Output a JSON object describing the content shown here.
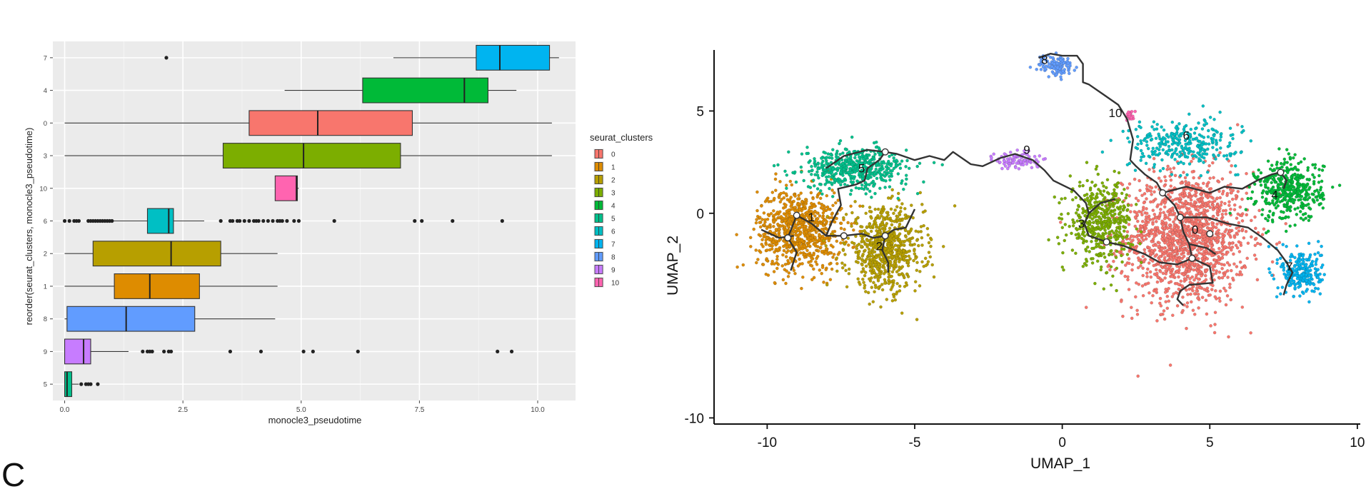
{
  "panel_letter": "C",
  "chart_data": [
    {
      "type": "boxplot",
      "xlabel": "monocle3_pseudotime",
      "ylabel": "reorder(seurat_clusters, monocle3_pseudotime)",
      "xlim": [
        -0.25,
        10.8
      ],
      "x_ticks": [
        "0.0",
        "2.5",
        "5.0",
        "7.5",
        "10.0"
      ],
      "x_tick_values": [
        0,
        2.5,
        5,
        7.5,
        10
      ],
      "grid": true,
      "legend": {
        "title": "seurat_clusters",
        "placement": "right",
        "entries": [
          "0",
          "1",
          "2",
          "3",
          "4",
          "5",
          "6",
          "7",
          "8",
          "9",
          "10"
        ]
      },
      "colors": {
        "0": "#F8766D",
        "1": "#DE8C00",
        "2": "#B79F00",
        "3": "#7CAE00",
        "4": "#00BA38",
        "5": "#00C08B",
        "6": "#00BFC4",
        "7": "#00B4F0",
        "8": "#619CFF",
        "9": "#C77CFF",
        "10": "#FF64B0"
      },
      "categories_top_to_bottom": [
        "7",
        "4",
        "0",
        "3",
        "10",
        "6",
        "2",
        "1",
        "8",
        "9",
        "5"
      ],
      "boxes": [
        {
          "cluster": "7",
          "whisker_low": 6.95,
          "q1": 8.7,
          "median": 9.2,
          "q3": 10.25,
          "whisker_high": 10.45,
          "outliers": [
            2.15
          ]
        },
        {
          "cluster": "4",
          "whisker_low": 4.65,
          "q1": 6.3,
          "median": 8.45,
          "q3": 8.95,
          "whisker_high": 9.55,
          "outliers": []
        },
        {
          "cluster": "0",
          "whisker_low": 0.0,
          "q1": 3.9,
          "median": 5.35,
          "q3": 7.35,
          "whisker_high": 10.3,
          "outliers": []
        },
        {
          "cluster": "3",
          "whisker_low": 0.0,
          "q1": 3.35,
          "median": 5.05,
          "q3": 7.1,
          "whisker_high": 10.3,
          "outliers": []
        },
        {
          "cluster": "10",
          "whisker_low": 4.45,
          "q1": 4.45,
          "median": 4.9,
          "q3": 4.92,
          "whisker_high": 4.95,
          "outliers": []
        },
        {
          "cluster": "6",
          "whisker_low": 0.7,
          "q1": 1.75,
          "median": 2.2,
          "q3": 2.3,
          "whisker_high": 2.95,
          "outliers": [
            0.0,
            0.1,
            0.2,
            0.25,
            0.3,
            0.5,
            0.55,
            0.6,
            0.65,
            0.7,
            0.75,
            0.8,
            0.85,
            0.9,
            0.95,
            1.0,
            3.3,
            3.5,
            3.55,
            3.65,
            3.7,
            3.8,
            3.9,
            4.0,
            4.05,
            4.1,
            4.2,
            4.3,
            4.4,
            4.5,
            4.55,
            4.6,
            4.7,
            4.85,
            4.95,
            5.7,
            7.4,
            7.55,
            8.2,
            9.25
          ]
        },
        {
          "cluster": "2",
          "whisker_low": 0.0,
          "q1": 0.6,
          "median": 2.25,
          "q3": 3.3,
          "whisker_high": 4.5,
          "outliers": []
        },
        {
          "cluster": "1",
          "whisker_low": 0.0,
          "q1": 1.05,
          "median": 1.8,
          "q3": 2.85,
          "whisker_high": 4.5,
          "outliers": []
        },
        {
          "cluster": "8",
          "whisker_low": 0.0,
          "q1": 0.05,
          "median": 1.3,
          "q3": 2.75,
          "whisker_high": 4.45,
          "outliers": []
        },
        {
          "cluster": "9",
          "whisker_low": 0.0,
          "q1": 0.0,
          "median": 0.4,
          "q3": 0.55,
          "whisker_high": 1.35,
          "outliers": [
            1.65,
            1.75,
            1.8,
            1.85,
            2.1,
            2.2,
            2.25,
            3.5,
            4.15,
            5.05,
            5.25,
            6.2,
            9.15,
            9.45
          ]
        },
        {
          "cluster": "5",
          "whisker_low": 0.0,
          "q1": 0.0,
          "median": 0.05,
          "q3": 0.15,
          "whisker_high": 0.3,
          "outliers": [
            0.35,
            0.45,
            0.5,
            0.55,
            0.7
          ]
        }
      ]
    },
    {
      "type": "scatter",
      "xlabel": "UMAP_1",
      "ylabel": "UMAP_2",
      "xlim": [
        -11.8,
        10.1
      ],
      "ylim": [
        -10.3,
        8.4
      ],
      "x_ticks": [
        "-10",
        "-5",
        "0",
        "5",
        "10"
      ],
      "x_tick_values": [
        -10,
        -5,
        0,
        5,
        10
      ],
      "y_ticks": [
        "-10",
        "0",
        "5"
      ],
      "y_tick_values": [
        -10,
        0,
        5
      ],
      "grid": false,
      "clusters": [
        {
          "label": "0",
          "cx": 4.2,
          "cy": -1.2,
          "sx": 1.7,
          "sy": 2.6,
          "n": 1500
        },
        {
          "label": "1",
          "cx": -8.9,
          "cy": -0.8,
          "sx": 1.15,
          "sy": 1.6,
          "n": 800
        },
        {
          "label": "2",
          "cx": -6.0,
          "cy": -1.8,
          "sx": 1.05,
          "sy": 1.6,
          "n": 700
        },
        {
          "label": "3",
          "cx": 1.3,
          "cy": -0.4,
          "sx": 0.85,
          "sy": 1.55,
          "n": 480
        },
        {
          "label": "4",
          "cx": 7.7,
          "cy": 1.1,
          "sx": 0.9,
          "sy": 1.2,
          "n": 420
        },
        {
          "label": "5",
          "cx": -7.0,
          "cy": 2.2,
          "sx": 1.45,
          "sy": 0.8,
          "n": 500
        },
        {
          "label": "6",
          "cx": 4.1,
          "cy": 3.4,
          "sx": 1.5,
          "sy": 0.9,
          "n": 300
        },
        {
          "label": "7",
          "cx": 8.1,
          "cy": -2.9,
          "sx": 0.55,
          "sy": 0.95,
          "n": 240
        },
        {
          "label": "8",
          "cx": -0.2,
          "cy": 7.2,
          "sx": 0.5,
          "sy": 0.45,
          "n": 110
        },
        {
          "label": "9",
          "cx": -1.5,
          "cy": 2.6,
          "sx": 0.6,
          "sy": 0.35,
          "n": 90
        },
        {
          "label": "10",
          "cx": 2.3,
          "cy": 4.75,
          "sx": 0.1,
          "sy": 0.2,
          "n": 25
        }
      ],
      "cluster_labels": [
        {
          "text": "8",
          "x": -0.6,
          "y": 7.3
        },
        {
          "text": "10",
          "x": 1.8,
          "y": 4.7
        },
        {
          "text": "6",
          "x": 4.2,
          "y": 3.6
        },
        {
          "text": "9",
          "x": -1.2,
          "y": 2.9
        },
        {
          "text": "5",
          "x": -6.8,
          "y": 2.0
        },
        {
          "text": "1",
          "x": -8.5,
          "y": -0.4
        },
        {
          "text": "2",
          "x": -6.2,
          "y": -1.8
        },
        {
          "text": "3",
          "x": 0.65,
          "y": -0.7
        },
        {
          "text": "0",
          "x": 4.5,
          "y": -1.0
        },
        {
          "text": "4",
          "x": 7.2,
          "y": 0.7
        },
        {
          "text": "7",
          "x": 7.7,
          "y": -2.8
        }
      ],
      "trajectory": [
        [
          [
            -9.2,
            -2.8
          ],
          [
            -9.0,
            -1.9
          ],
          [
            -9.3,
            -1.2
          ],
          [
            -9.0,
            -0.1
          ],
          [
            -8.5,
            -0.5
          ],
          [
            -8.0,
            -1.1
          ],
          [
            -7.4,
            -1.1
          ],
          [
            -6.8,
            -1.0
          ],
          [
            -6.4,
            -1.2
          ],
          [
            -6.0,
            -1.1
          ],
          [
            -5.7,
            -0.8
          ],
          [
            -5.3,
            -0.7
          ],
          [
            -5.0,
            0.2
          ]
        ],
        [
          [
            -9.1,
            -1.1
          ],
          [
            -9.6,
            -1.2
          ],
          [
            -10.2,
            -0.8
          ]
        ],
        [
          [
            -6.0,
            -1.1
          ],
          [
            -6.1,
            -1.8
          ],
          [
            -5.9,
            -2.4
          ],
          [
            -5.9,
            -2.9
          ]
        ],
        [
          [
            -8.0,
            -1.1
          ],
          [
            -7.8,
            -0.4
          ],
          [
            -7.5,
            0.4
          ],
          [
            -7.6,
            1.2
          ],
          [
            -7.0,
            1.4
          ],
          [
            -6.7,
            1.6
          ],
          [
            -6.6,
            2.2
          ],
          [
            -6.2,
            2.6
          ],
          [
            -6.0,
            3.0
          ],
          [
            -5.6,
            2.9
          ],
          [
            -5.0,
            2.6
          ],
          [
            -4.5,
            2.8
          ],
          [
            -4.0,
            2.6
          ],
          [
            -3.7,
            3.0
          ],
          [
            -3.1,
            2.4
          ],
          [
            -2.7,
            2.3
          ],
          [
            -2.1,
            2.7
          ],
          [
            -1.6,
            2.9
          ],
          [
            -1.0,
            2.6
          ],
          [
            -0.6,
            2.1
          ],
          [
            -0.3,
            1.6
          ],
          [
            0.4,
            1.1
          ],
          [
            0.8,
            0.5
          ],
          [
            0.9,
            0.0
          ],
          [
            0.75,
            -0.5
          ],
          [
            0.9,
            -1.1
          ],
          [
            1.5,
            -1.4
          ],
          [
            2.1,
            -1.6
          ],
          [
            2.8,
            -2.0
          ],
          [
            3.3,
            -2.4
          ],
          [
            3.9,
            -2.5
          ],
          [
            4.4,
            -2.2
          ],
          [
            5.0,
            -2.6
          ],
          [
            5.1,
            -3.4
          ],
          [
            4.3,
            -3.5
          ],
          [
            4.0,
            -3.8
          ],
          [
            3.9,
            -4.2
          ],
          [
            4.1,
            -4.5
          ]
        ],
        [
          [
            -6.0,
            3.0
          ],
          [
            -6.6,
            3.1
          ],
          [
            -7.4,
            2.8
          ],
          [
            -8.0,
            2.2
          ]
        ],
        [
          [
            4.4,
            -2.2
          ],
          [
            4.3,
            -1.5
          ],
          [
            4.1,
            -0.9
          ],
          [
            4.0,
            -0.2
          ],
          [
            3.8,
            0.4
          ],
          [
            3.4,
            1.0
          ],
          [
            3.2,
            1.5
          ],
          [
            2.8,
            1.9
          ],
          [
            2.5,
            2.3
          ],
          [
            2.3,
            2.6
          ]
        ],
        [
          [
            4.3,
            -1.5
          ],
          [
            4.9,
            -1.7
          ],
          [
            5.2,
            -2.0
          ]
        ],
        [
          [
            3.4,
            1.0
          ],
          [
            4.2,
            1.3
          ],
          [
            5.0,
            1.0
          ],
          [
            5.5,
            1.3
          ],
          [
            6.1,
            1.2
          ],
          [
            6.6,
            1.6
          ],
          [
            7.1,
            1.9
          ],
          [
            7.4,
            2.0
          ],
          [
            7.6,
            1.6
          ],
          [
            7.5,
            1.2
          ]
        ],
        [
          [
            4.0,
            -0.2
          ],
          [
            4.9,
            -0.2
          ],
          [
            5.6,
            -0.5
          ],
          [
            6.3,
            -0.7
          ],
          [
            6.8,
            -1.2
          ],
          [
            7.3,
            -1.8
          ],
          [
            7.6,
            -2.4
          ],
          [
            7.8,
            -2.9
          ],
          [
            7.6,
            -3.5
          ],
          [
            7.5,
            -4.0
          ]
        ],
        [
          [
            2.3,
            2.6
          ],
          [
            2.4,
            3.6
          ],
          [
            2.2,
            4.6
          ],
          [
            1.9,
            5.3
          ],
          [
            1.4,
            5.8
          ],
          [
            0.9,
            6.3
          ],
          [
            0.7,
            6.4
          ],
          [
            0.7,
            7.3
          ],
          [
            0.5,
            7.7
          ],
          [
            0.0,
            7.7
          ],
          [
            -0.4,
            7.8
          ],
          [
            -0.8,
            7.6
          ]
        ],
        [
          [
            0.9,
            0.0
          ],
          [
            1.3,
            0.5
          ],
          [
            1.8,
            0.7
          ]
        ]
      ]
    }
  ]
}
